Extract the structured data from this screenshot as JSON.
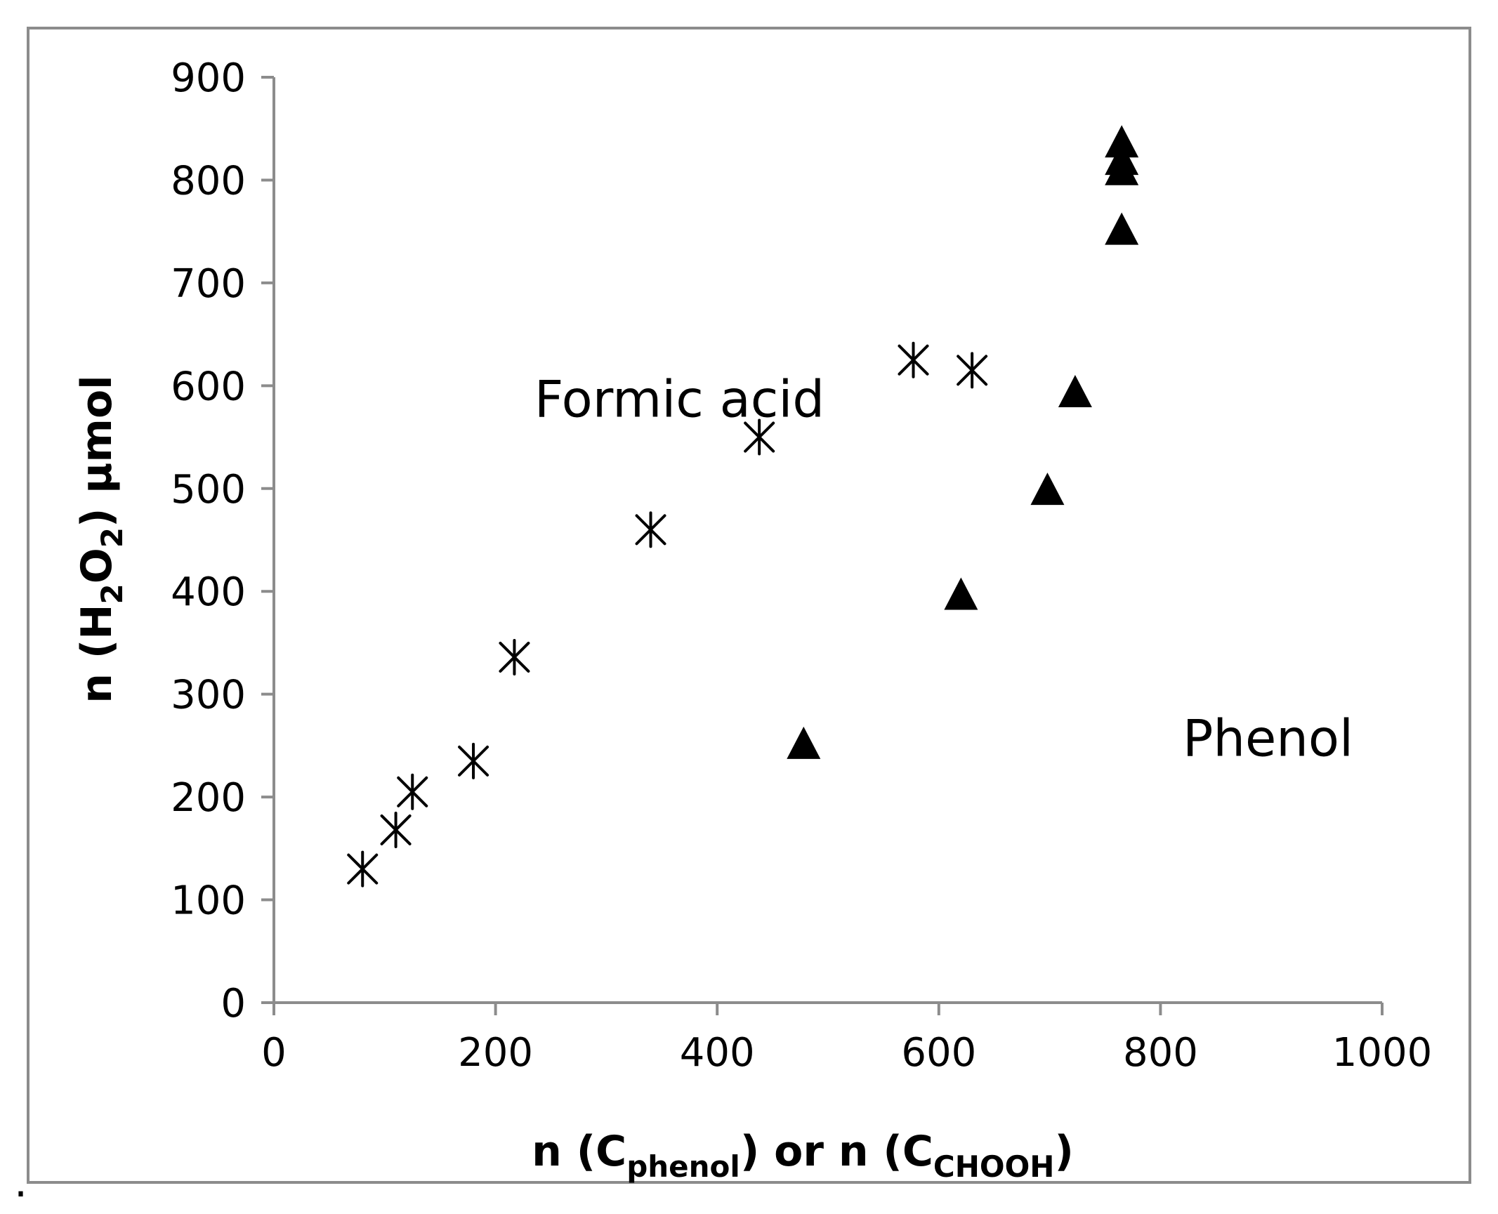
{
  "chart_data": {
    "type": "scatter",
    "xlabel": {
      "parts": [
        {
          "text": "n (C",
          "sub": false
        },
        {
          "text": "phenol",
          "sub": true
        },
        {
          "text": ") or n (C",
          "sub": false
        },
        {
          "text": "CHOOH",
          "sub": true
        },
        {
          "text": ")",
          "sub": false
        }
      ]
    },
    "ylabel": {
      "parts": [
        {
          "text": "n (H",
          "sub": false
        },
        {
          "text": "2",
          "sub": true
        },
        {
          "text": "O",
          "sub": false
        },
        {
          "text": "2",
          "sub": true
        },
        {
          "text": ") µmol",
          "sub": false
        }
      ]
    },
    "xlim": [
      0,
      1000
    ],
    "ylim": [
      0,
      900
    ],
    "xticks": [
      "0",
      "200",
      "400",
      "600",
      "800",
      "1000"
    ],
    "yticks": [
      "0",
      "100",
      "200",
      "300",
      "400",
      "500",
      "600",
      "700",
      "800",
      "900"
    ],
    "grid": false,
    "legend": "none",
    "series": [
      {
        "marker": "asterisk",
        "color": "#000000",
        "points": [
          {
            "x": 80,
            "y": 130
          },
          {
            "x": 110,
            "y": 168
          },
          {
            "x": 125,
            "y": 205
          },
          {
            "x": 180,
            "y": 235
          },
          {
            "x": 217,
            "y": 336
          },
          {
            "x": 340,
            "y": 460
          },
          {
            "x": 438,
            "y": 550
          },
          {
            "x": 577,
            "y": 625
          },
          {
            "x": 630,
            "y": 615
          }
        ]
      },
      {
        "marker": "triangle",
        "color": "#000000",
        "points": [
          {
            "x": 478,
            "y": 250
          },
          {
            "x": 620,
            "y": 395
          },
          {
            "x": 698,
            "y": 497
          },
          {
            "x": 723,
            "y": 592
          },
          {
            "x": 765,
            "y": 750
          },
          {
            "x": 765,
            "y": 808
          },
          {
            "x": 765,
            "y": 818
          },
          {
            "x": 765,
            "y": 835
          }
        ]
      }
    ],
    "annotations": [
      {
        "text": "Formic acid",
        "x": 235,
        "y": 570
      },
      {
        "text": "Phenol",
        "x": 820,
        "y": 240
      }
    ],
    "footnote": "."
  }
}
